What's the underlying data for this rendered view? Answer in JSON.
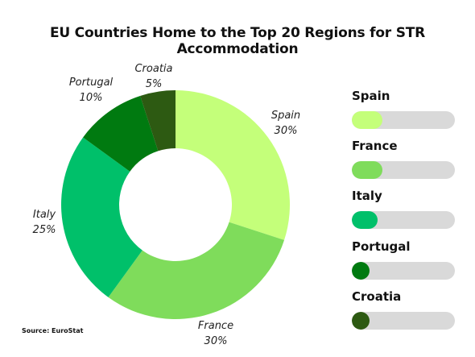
{
  "title": "EU Countries Home to the Top 20 Regions for STR Accommodation",
  "source": "Source: EuroStat",
  "chart_data": {
    "type": "pie",
    "title": "EU Countries Home to the Top 20 Regions for STR Accommodation",
    "slices": [
      {
        "label": "Spain",
        "value": 30,
        "display": "30%",
        "color": "#c4ff7a"
      },
      {
        "label": "France",
        "value": 30,
        "display": "30%",
        "color": "#7fdc5b"
      },
      {
        "label": "Italy",
        "value": 25,
        "display": "25%",
        "color": "#00c06a"
      },
      {
        "label": "Portugal",
        "value": 10,
        "display": "10%",
        "color": "#007a10"
      },
      {
        "label": "Croatia",
        "value": 5,
        "display": "5%",
        "color": "#2d5a12"
      }
    ],
    "legend_position": "right"
  },
  "legend": {
    "track_color": "#d9d9d9",
    "items": [
      {
        "label": "Spain",
        "color": "#c4ff7a",
        "fill": 0.3
      },
      {
        "label": "France",
        "color": "#7fdc5b",
        "fill": 0.3
      },
      {
        "label": "Italy",
        "color": "#00c06a",
        "fill": 0.25
      },
      {
        "label": "Portugal",
        "color": "#007a10",
        "fill": 0.1
      },
      {
        "label": "Croatia",
        "color": "#2d5a12",
        "fill": 0.05
      }
    ]
  }
}
